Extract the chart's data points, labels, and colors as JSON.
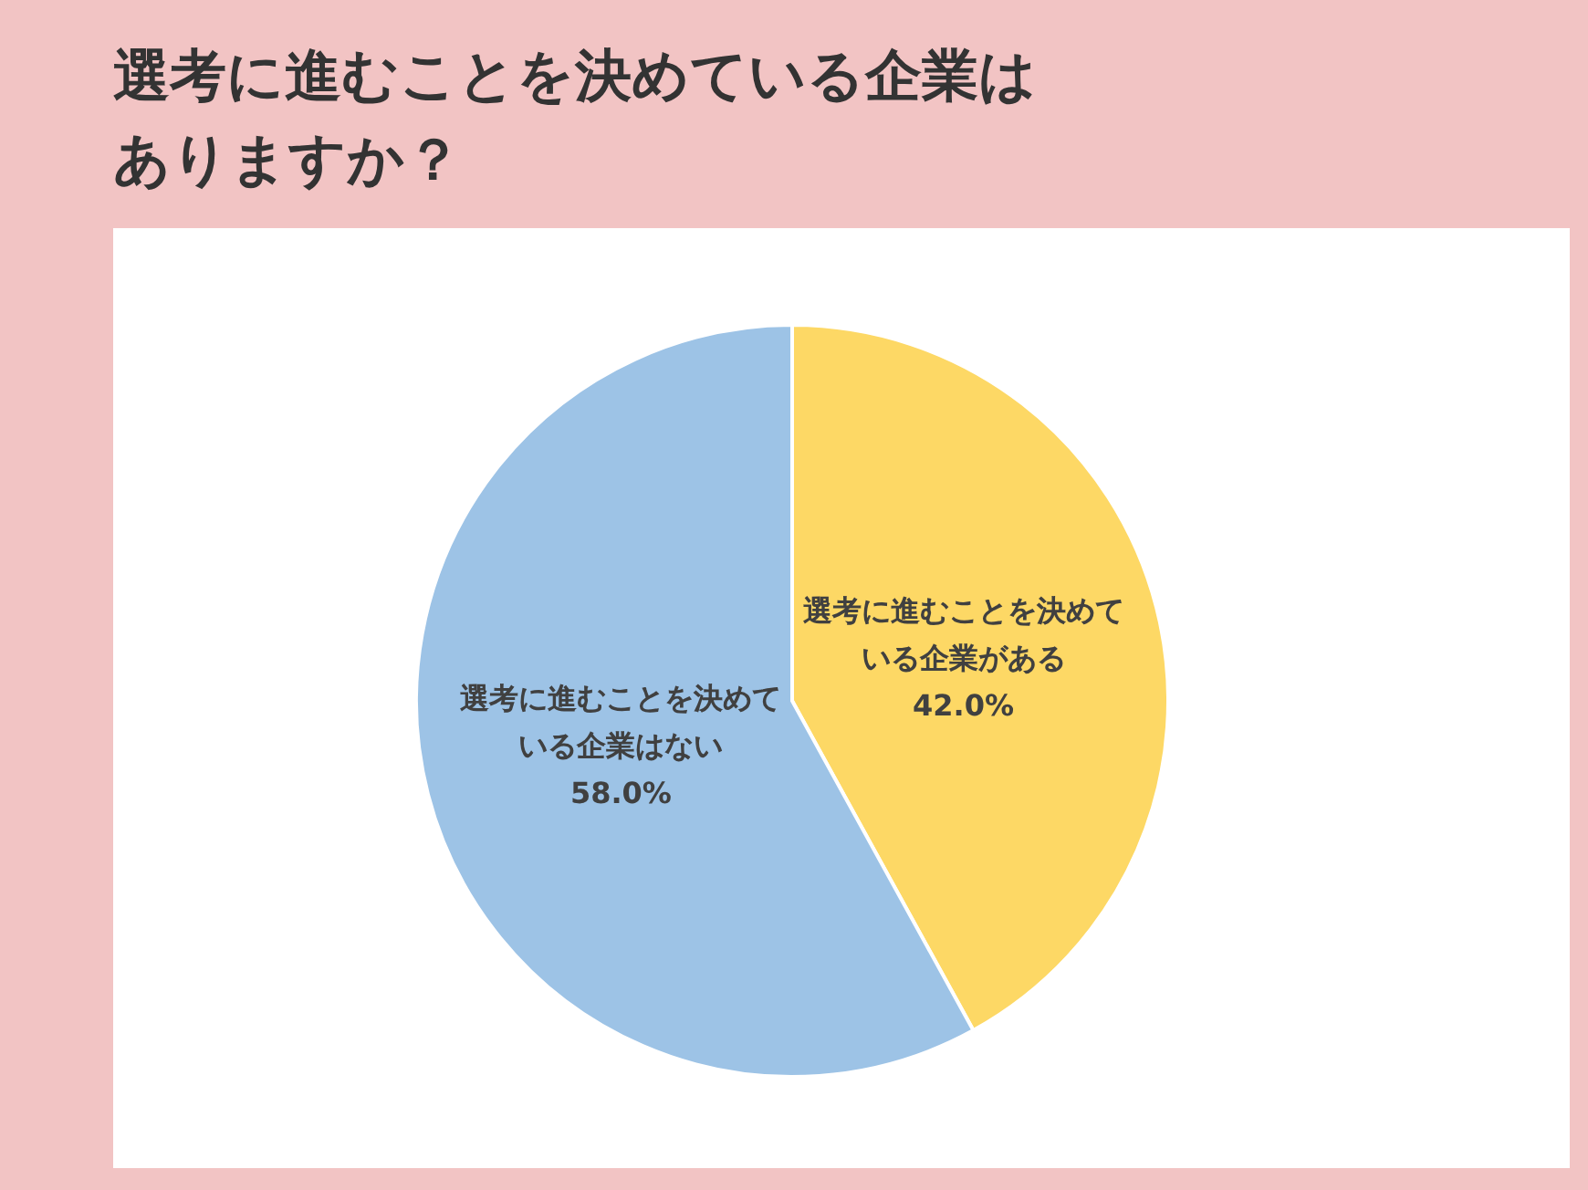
{
  "chart_data": {
    "type": "pie",
    "title": "選考に進むことを決めている企業はありますか？",
    "categories": [
      "選考に進むことを決めている企業がある",
      "選考に進むことを決めている企業はない"
    ],
    "values": [
      42.0,
      58.0
    ],
    "colors": [
      "#fdd865",
      "#9dc3e6"
    ],
    "value_labels": [
      "42.0%",
      "58.0%"
    ]
  }
}
